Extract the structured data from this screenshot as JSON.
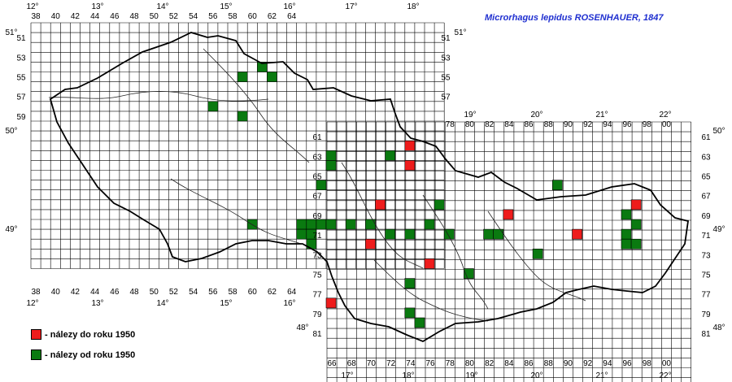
{
  "title": "Microrhagus lepidus ROSENHAUER, 1847",
  "colors": {
    "pre1950": "#ee1c1c",
    "post1950": "#0a7a10",
    "grid": "#000000",
    "title": "#1f2fd0"
  },
  "legend": [
    {
      "label": "- nálezy do roku 1950",
      "color": "#ee1c1c"
    },
    {
      "label": "- nálezy od roku 1950",
      "color": "#0a7a10"
    }
  ],
  "grid_west": {
    "col_labels": [
      "38",
      "40",
      "42",
      "44",
      "46",
      "48",
      "50",
      "52",
      "54",
      "56",
      "58",
      "60",
      "62",
      "64"
    ],
    "row_labels": [
      "51",
      "53",
      "55",
      "57",
      "59"
    ],
    "row_labels_right": [
      "51",
      "53",
      "55",
      "57"
    ]
  },
  "grid_east": {
    "col_labels": [
      "66",
      "68",
      "70",
      "72",
      "74",
      "76",
      "78",
      "80",
      "82",
      "84",
      "86",
      "88",
      "90",
      "92",
      "94",
      "96",
      "98",
      "00"
    ],
    "col_labels_top": [
      "78",
      "80",
      "82",
      "84",
      "86",
      "88",
      "90",
      "92",
      "94",
      "96",
      "98",
      "00"
    ],
    "row_labels_left": [
      "61",
      "63",
      "65",
      "67",
      "69",
      "71",
      "73",
      "75",
      "77",
      "79",
      "81"
    ],
    "row_labels_right": [
      "61",
      "63",
      "65",
      "67",
      "69",
      "71",
      "73",
      "75",
      "77",
      "79",
      "81"
    ]
  },
  "degrees": {
    "lon_top": [
      "12°",
      "13°",
      "14°",
      "15°",
      "16°",
      "17°",
      "18°"
    ],
    "lon_top_east": [
      "19°",
      "20°",
      "21°",
      "22°"
    ],
    "lon_bottom_west": [
      "12°",
      "13°",
      "14°",
      "15°",
      "16°"
    ],
    "lon_bottom_east": [
      "17°",
      "18°",
      "19°",
      "20°",
      "21°",
      "22°"
    ],
    "lat": [
      "51°",
      "50°",
      "49°",
      "48°"
    ]
  },
  "records": {
    "pre1950": [
      [
        "76",
        "62"
      ],
      [
        "76",
        "64"
      ],
      [
        "73",
        "68"
      ],
      [
        "86",
        "69"
      ],
      [
        "72",
        "72"
      ],
      [
        "80",
        "71"
      ],
      [
        "93",
        "71"
      ],
      [
        "78",
        "74"
      ],
      [
        "68",
        "78"
      ],
      [
        "99",
        "68"
      ]
    ],
    "post1950": [
      [
        "61",
        "54"
      ],
      [
        "59",
        "55"
      ],
      [
        "62",
        "55"
      ],
      [
        "56",
        "58"
      ],
      [
        "59",
        "59"
      ],
      [
        "74",
        "63"
      ],
      [
        "68",
        "63"
      ],
      [
        "68",
        "64"
      ],
      [
        "67",
        "66"
      ],
      [
        "79",
        "68"
      ],
      [
        "91",
        "66"
      ],
      [
        "60",
        "70"
      ],
      [
        "65",
        "70"
      ],
      [
        "66",
        "70"
      ],
      [
        "67",
        "70"
      ],
      [
        "70",
        "70"
      ],
      [
        "65",
        "71"
      ],
      [
        "66",
        "71"
      ],
      [
        "66",
        "72"
      ],
      [
        "68",
        "70"
      ],
      [
        "72",
        "70"
      ],
      [
        "78",
        "70"
      ],
      [
        "74",
        "71"
      ],
      [
        "76",
        "71"
      ],
      [
        "80",
        "71"
      ],
      [
        "84",
        "71"
      ],
      [
        "85",
        "71"
      ],
      [
        "98",
        "69"
      ],
      [
        "99",
        "70"
      ],
      [
        "98",
        "71"
      ],
      [
        "98",
        "72"
      ],
      [
        "99",
        "72"
      ],
      [
        "89",
        "73"
      ],
      [
        "82",
        "75"
      ],
      [
        "76",
        "76"
      ],
      [
        "76",
        "79"
      ],
      [
        "77",
        "80"
      ]
    ]
  }
}
